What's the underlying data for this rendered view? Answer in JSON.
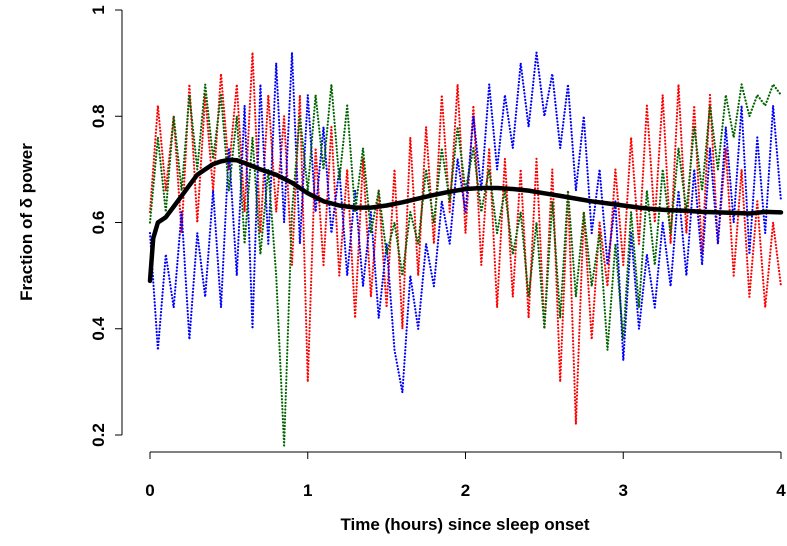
{
  "chart_data": {
    "type": "line",
    "title": "",
    "xlabel": "Time (hours) since sleep onset",
    "ylabel": "Fraction of δ power",
    "xlim": [
      0,
      4
    ],
    "ylim": [
      0.18,
      1.0
    ],
    "x_ticks": [
      "0",
      "1",
      "2",
      "3",
      "4"
    ],
    "y_ticks": [
      "0.2",
      "0.4",
      "0.6",
      "0.8",
      "1"
    ],
    "grid": false,
    "legend": "none",
    "series": [
      {
        "style": "dotted",
        "color": "#ff0000",
        "x": [
          0.0,
          0.05,
          0.1,
          0.15,
          0.2,
          0.25,
          0.3,
          0.35,
          0.4,
          0.45,
          0.5,
          0.55,
          0.6,
          0.65,
          0.7,
          0.75,
          0.8,
          0.85,
          0.9,
          0.95,
          1.0,
          1.05,
          1.1,
          1.15,
          1.2,
          1.25,
          1.3,
          1.35,
          1.4,
          1.45,
          1.5,
          1.55,
          1.6,
          1.65,
          1.7,
          1.75,
          1.8,
          1.85,
          1.9,
          1.95,
          2.0,
          2.05,
          2.1,
          2.15,
          2.2,
          2.25,
          2.3,
          2.35,
          2.4,
          2.45,
          2.5,
          2.55,
          2.6,
          2.65,
          2.7,
          2.75,
          2.8,
          2.85,
          2.9,
          2.95,
          3.0,
          3.05,
          3.1,
          3.15,
          3.2,
          3.25,
          3.3,
          3.35,
          3.4,
          3.45,
          3.5,
          3.55,
          3.6,
          3.65,
          3.7,
          3.75,
          3.8,
          3.85,
          3.9,
          3.95,
          4.0
        ],
        "y": [
          0.62,
          0.82,
          0.66,
          0.8,
          0.58,
          0.86,
          0.6,
          0.84,
          0.66,
          0.88,
          0.7,
          0.86,
          0.62,
          0.92,
          0.58,
          0.84,
          0.62,
          0.8,
          0.52,
          0.84,
          0.3,
          0.74,
          0.52,
          0.78,
          0.5,
          0.7,
          0.42,
          0.72,
          0.46,
          0.66,
          0.44,
          0.7,
          0.4,
          0.76,
          0.5,
          0.78,
          0.56,
          0.84,
          0.62,
          0.86,
          0.58,
          0.82,
          0.52,
          0.74,
          0.44,
          0.72,
          0.46,
          0.7,
          0.42,
          0.72,
          0.4,
          0.7,
          0.3,
          0.66,
          0.22,
          0.62,
          0.38,
          0.6,
          0.48,
          0.7,
          0.52,
          0.76,
          0.56,
          0.82,
          0.6,
          0.84,
          0.56,
          0.86,
          0.58,
          0.82,
          0.54,
          0.84,
          0.56,
          0.74,
          0.5,
          0.7,
          0.46,
          0.64,
          0.44,
          0.6,
          0.48
        ]
      },
      {
        "style": "dotted",
        "color": "#0000ff",
        "x": [
          0.0,
          0.05,
          0.1,
          0.15,
          0.2,
          0.25,
          0.3,
          0.35,
          0.4,
          0.45,
          0.5,
          0.55,
          0.6,
          0.65,
          0.7,
          0.75,
          0.8,
          0.85,
          0.9,
          0.95,
          1.0,
          1.05,
          1.1,
          1.15,
          1.2,
          1.25,
          1.3,
          1.35,
          1.4,
          1.45,
          1.5,
          1.55,
          1.6,
          1.65,
          1.7,
          1.75,
          1.8,
          1.85,
          1.9,
          1.95,
          2.0,
          2.05,
          2.1,
          2.15,
          2.2,
          2.25,
          2.3,
          2.35,
          2.4,
          2.45,
          2.5,
          2.55,
          2.6,
          2.65,
          2.7,
          2.75,
          2.8,
          2.85,
          2.9,
          2.95,
          3.0,
          3.05,
          3.1,
          3.15,
          3.2,
          3.25,
          3.3,
          3.35,
          3.4,
          3.45,
          3.5,
          3.55,
          3.6,
          3.65,
          3.7,
          3.75,
          3.8,
          3.85,
          3.9,
          3.95,
          4.0
        ],
        "y": [
          0.58,
          0.36,
          0.54,
          0.44,
          0.62,
          0.38,
          0.58,
          0.46,
          0.66,
          0.44,
          0.74,
          0.5,
          0.82,
          0.4,
          0.86,
          0.56,
          0.9,
          0.6,
          0.92,
          0.56,
          0.84,
          0.62,
          0.78,
          0.58,
          0.7,
          0.5,
          0.66,
          0.48,
          0.62,
          0.42,
          0.56,
          0.36,
          0.28,
          0.5,
          0.4,
          0.56,
          0.48,
          0.64,
          0.56,
          0.72,
          0.62,
          0.8,
          0.66,
          0.86,
          0.7,
          0.84,
          0.74,
          0.9,
          0.78,
          0.92,
          0.8,
          0.88,
          0.74,
          0.86,
          0.66,
          0.8,
          0.58,
          0.7,
          0.52,
          0.64,
          0.34,
          0.58,
          0.4,
          0.54,
          0.44,
          0.6,
          0.48,
          0.66,
          0.5,
          0.7,
          0.52,
          0.74,
          0.56,
          0.78,
          0.6,
          0.82,
          0.54,
          0.76,
          0.58,
          0.82,
          0.64
        ]
      },
      {
        "style": "dotted",
        "color": "#006400",
        "x": [
          0.0,
          0.05,
          0.1,
          0.15,
          0.2,
          0.25,
          0.3,
          0.35,
          0.4,
          0.45,
          0.5,
          0.55,
          0.6,
          0.65,
          0.7,
          0.75,
          0.8,
          0.85,
          0.9,
          0.95,
          1.0,
          1.05,
          1.1,
          1.15,
          1.2,
          1.25,
          1.3,
          1.35,
          1.4,
          1.45,
          1.5,
          1.55,
          1.6,
          1.65,
          1.7,
          1.75,
          1.8,
          1.85,
          1.9,
          1.95,
          2.0,
          2.05,
          2.1,
          2.15,
          2.2,
          2.25,
          2.3,
          2.35,
          2.4,
          2.45,
          2.5,
          2.55,
          2.6,
          2.65,
          2.7,
          2.75,
          2.8,
          2.85,
          2.9,
          2.95,
          3.0,
          3.05,
          3.1,
          3.15,
          3.2,
          3.25,
          3.3,
          3.35,
          3.4,
          3.45,
          3.5,
          3.55,
          3.6,
          3.65,
          3.7,
          3.75,
          3.8,
          3.85,
          3.9,
          3.95,
          4.0
        ],
        "y": [
          0.6,
          0.76,
          0.62,
          0.8,
          0.66,
          0.84,
          0.7,
          0.86,
          0.72,
          0.84,
          0.66,
          0.8,
          0.56,
          0.76,
          0.54,
          0.7,
          0.5,
          0.18,
          0.62,
          0.8,
          0.66,
          0.84,
          0.7,
          0.86,
          0.68,
          0.82,
          0.62,
          0.74,
          0.58,
          0.66,
          0.54,
          0.6,
          0.5,
          0.62,
          0.56,
          0.7,
          0.6,
          0.74,
          0.64,
          0.78,
          0.66,
          0.74,
          0.62,
          0.7,
          0.58,
          0.66,
          0.54,
          0.62,
          0.46,
          0.6,
          0.4,
          0.64,
          0.42,
          0.66,
          0.46,
          0.62,
          0.48,
          0.58,
          0.36,
          0.56,
          0.38,
          0.62,
          0.44,
          0.66,
          0.52,
          0.7,
          0.58,
          0.74,
          0.62,
          0.78,
          0.66,
          0.82,
          0.7,
          0.84,
          0.76,
          0.86,
          0.8,
          0.84,
          0.82,
          0.86,
          0.84
        ]
      },
      {
        "style": "thick solid",
        "color": "#000000",
        "x": [
          0.0,
          0.02,
          0.05,
          0.1,
          0.15,
          0.2,
          0.25,
          0.3,
          0.35,
          0.4,
          0.45,
          0.5,
          0.55,
          0.6,
          0.7,
          0.8,
          0.9,
          1.0,
          1.1,
          1.2,
          1.3,
          1.4,
          1.5,
          1.6,
          1.7,
          1.8,
          1.9,
          2.0,
          2.1,
          2.2,
          2.3,
          2.4,
          2.5,
          2.6,
          2.7,
          2.8,
          2.9,
          3.0,
          3.1,
          3.2,
          3.3,
          3.4,
          3.5,
          3.6,
          3.7,
          3.8,
          3.9,
          4.0
        ],
        "y": [
          0.49,
          0.57,
          0.6,
          0.61,
          0.63,
          0.65,
          0.67,
          0.69,
          0.7,
          0.71,
          0.715,
          0.718,
          0.717,
          0.712,
          0.7,
          0.69,
          0.675,
          0.655,
          0.64,
          0.632,
          0.628,
          0.628,
          0.632,
          0.638,
          0.645,
          0.652,
          0.658,
          0.663,
          0.665,
          0.665,
          0.663,
          0.66,
          0.655,
          0.65,
          0.645,
          0.64,
          0.636,
          0.632,
          0.628,
          0.625,
          0.623,
          0.622,
          0.62,
          0.619,
          0.618,
          0.617,
          0.62,
          0.619
        ]
      }
    ]
  }
}
